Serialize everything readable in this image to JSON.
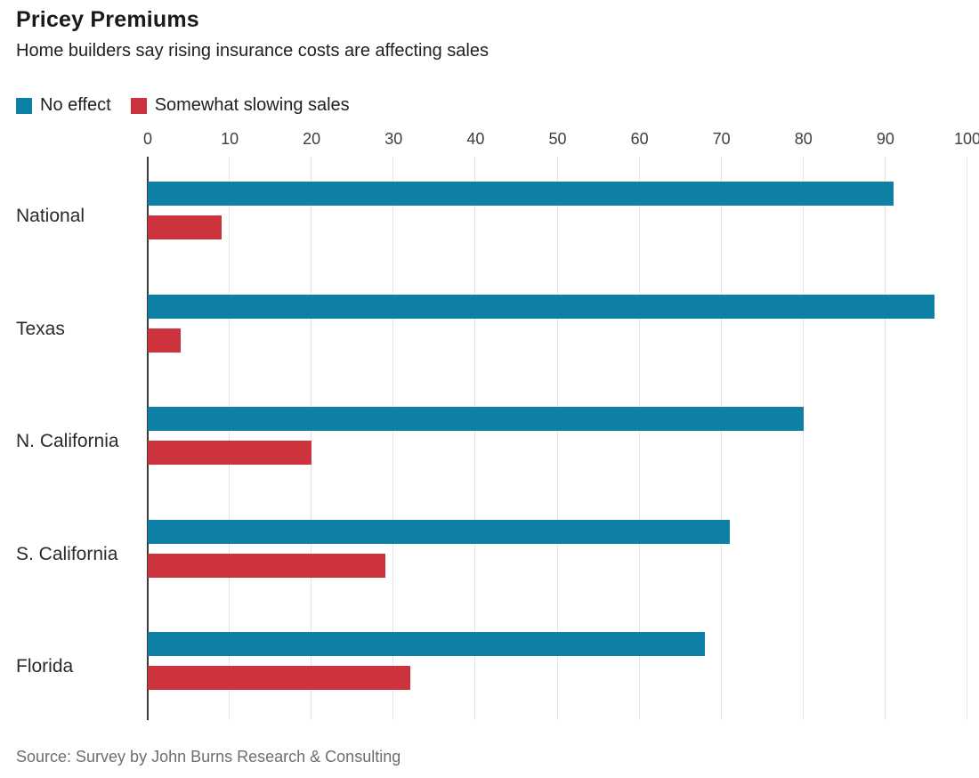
{
  "header": {
    "title": "Pricey Premiums",
    "subtitle": "Home builders say rising insurance costs are affecting sales"
  },
  "legend": [
    {
      "label": "No effect",
      "color": "#0e7fa5"
    },
    {
      "label": "Somewhat slowing sales",
      "color": "#cd333d"
    }
  ],
  "source": "Source: Survey by John Burns Research & Consulting",
  "chart_data": {
    "type": "bar",
    "orientation": "horizontal",
    "title": "Pricey Premiums",
    "subtitle": "Home builders say rising insurance costs are affecting sales",
    "categories": [
      "National",
      "Texas",
      "N. California",
      "S. California",
      "Florida"
    ],
    "series": [
      {
        "name": "No effect",
        "color": "#0e7fa5",
        "values": [
          91,
          96,
          80,
          71,
          68
        ]
      },
      {
        "name": "Somewhat slowing sales",
        "color": "#cd333d",
        "values": [
          9,
          4,
          20,
          29,
          32
        ]
      }
    ],
    "xlim": [
      0,
      100
    ],
    "xticks": [
      0,
      10,
      20,
      30,
      40,
      50,
      60,
      70,
      80,
      90,
      100
    ],
    "grid": true,
    "legend_position": "top",
    "axis_color": "#3b3b3b",
    "gridline_color": "#e4e4e4"
  }
}
